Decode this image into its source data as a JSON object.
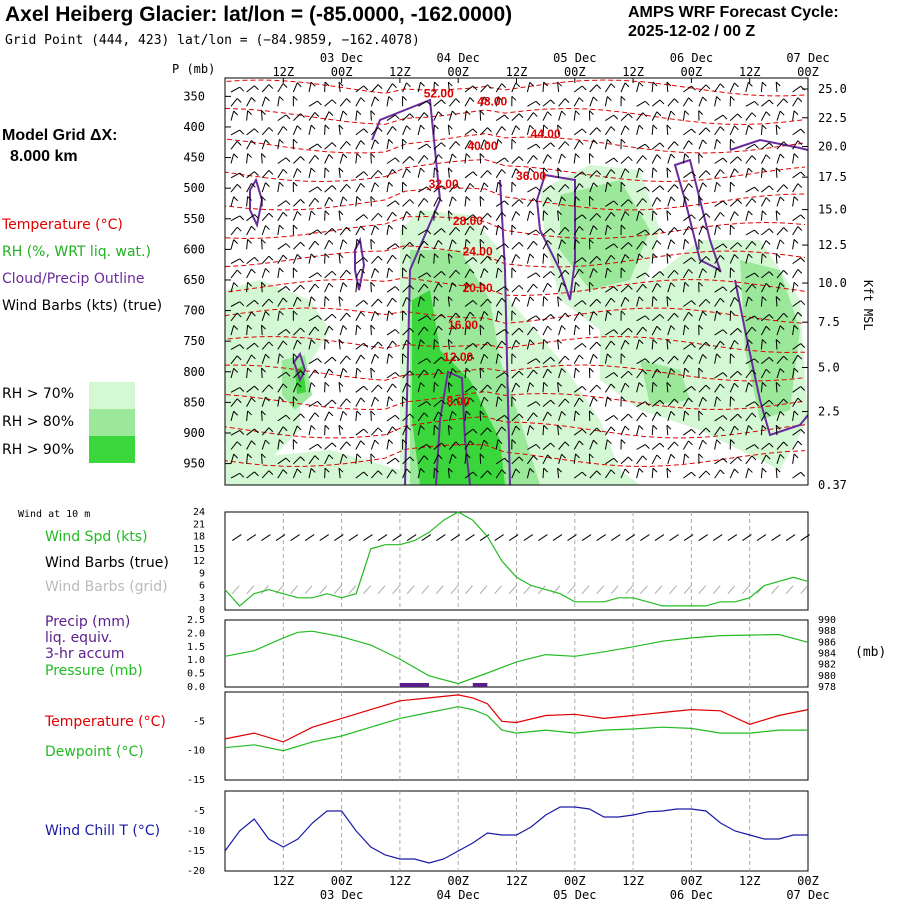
{
  "header": {
    "title": "Axel Heiberg Glacier:  lat/lon = (-85.0000, -162.0000)",
    "subtitle": "Grid Point (444, 423) lat/lon = (−84.9859, −162.4078)",
    "cycle_line1": "AMPS WRF Forecast Cycle:",
    "cycle_line2": "2025-12-02 / 00  Z"
  },
  "sidebar": {
    "model_grid_label": "Model Grid ΔX:",
    "model_grid_value": "8.000 km",
    "legend_temperature": "Temperature (°C)",
    "legend_rh": "RH (%, WRT liq. wat.)",
    "legend_cloud": "Cloud/Precip Outline",
    "legend_wind": "Wind Barbs (kts) (true)",
    "rh_levels": [
      {
        "label": "RH > 70%",
        "color": "#d4f7d4"
      },
      {
        "label": "RH > 80%",
        "color": "#9be89b"
      },
      {
        "label": "RH > 90%",
        "color": "#3bd63b"
      }
    ]
  },
  "colors": {
    "temperature": "#e00000",
    "rh_green": "#21c021",
    "cloud": "#6a2c9c",
    "wind_chill": "#1a1aa8",
    "dewpoint": "#22bb22",
    "pressure": "#22bb22",
    "precip_bar": "#5a1e8c",
    "grey_barbs": "#aaaaaa"
  },
  "time_axis": {
    "hour_labels": [
      "12Z",
      "00Z",
      "12Z",
      "00Z",
      "12Z",
      "00Z",
      "12Z",
      "00Z",
      "12Z",
      "00Z"
    ],
    "hour_values": [
      12,
      24,
      36,
      48,
      60,
      72,
      84,
      96,
      108,
      120
    ],
    "date_labels": [
      "03 Dec",
      "04 Dec",
      "05 Dec",
      "06 Dec",
      "07 Dec"
    ],
    "date_hours": [
      24,
      48,
      72,
      96,
      120
    ],
    "start_hour": 0,
    "end_hour": 120
  },
  "chart_data": [
    {
      "type": "heatmap",
      "name": "cross-section",
      "ylabel_left": "P (mb)",
      "ylabel_right": "Kft MSL",
      "pressure_ticks": [
        350,
        400,
        450,
        500,
        550,
        600,
        650,
        700,
        750,
        800,
        850,
        900,
        950
      ],
      "kft_ticks": [
        "25.0",
        "22.5",
        "20.0",
        "17.5",
        "15.0",
        "12.5",
        "10.0",
        "7.5",
        "5.0",
        "2.5",
        "0.37"
      ],
      "kft_pressure": [
        338,
        385,
        432,
        482,
        535,
        593,
        655,
        719,
        793,
        865,
        985
      ],
      "ylim": [
        320,
        985
      ],
      "isotherms": [
        {
          "label": "52.00",
          "hour": 44,
          "p": 352
        },
        {
          "label": "48.00",
          "hour": 55,
          "p": 365
        },
        {
          "label": "44.00",
          "hour": 66,
          "p": 418
        },
        {
          "label": "40.00",
          "hour": 53,
          "p": 438
        },
        {
          "label": "36.00",
          "hour": 63,
          "p": 487
        },
        {
          "label": "32.00",
          "hour": 45,
          "p": 500
        },
        {
          "label": "28.00",
          "hour": 50,
          "p": 560
        },
        {
          "label": "24.00",
          "hour": 52,
          "p": 610
        },
        {
          "label": "20.00",
          "hour": 52,
          "p": 670
        },
        {
          "label": "16.00",
          "hour": 49,
          "p": 730
        },
        {
          "label": "12.00",
          "hour": 48,
          "p": 782
        },
        {
          "label": "8.00",
          "hour": 48,
          "p": 855
        }
      ]
    },
    {
      "type": "line",
      "name": "wind-panel",
      "panel_title": "Wind at 10 m",
      "labels": [
        "Wind Spd (kts)",
        "Wind Barbs (true)",
        "Wind Barbs (grid)"
      ],
      "yticks": [
        0,
        3,
        6,
        9,
        12,
        15,
        18,
        21,
        24
      ],
      "ylim": [
        0,
        24
      ],
      "series": [
        {
          "name": "Wind Spd (kts)",
          "x": [
            0,
            3,
            6,
            9,
            12,
            15,
            18,
            21,
            24,
            27,
            30,
            33,
            36,
            39,
            42,
            45,
            48,
            51,
            54,
            57,
            60,
            63,
            66,
            69,
            72,
            75,
            78,
            81,
            84,
            87,
            90,
            93,
            96,
            99,
            102,
            105,
            108,
            111,
            114,
            117,
            120
          ],
          "values": [
            5,
            1,
            4,
            5,
            4,
            3,
            3,
            4,
            3,
            4,
            15,
            16,
            16,
            17,
            19,
            22,
            24,
            22,
            18,
            12,
            8,
            6,
            5,
            4,
            2,
            2,
            2,
            3,
            3,
            2,
            1,
            1,
            1,
            1,
            2,
            2,
            3,
            6,
            7,
            8,
            7
          ]
        }
      ]
    },
    {
      "type": "line",
      "name": "precip-pressure-panel",
      "labels": [
        "Precip (mm)",
        "liq. equiv.",
        "3-hr accum",
        "Pressure (mb)"
      ],
      "left_ticks": [
        "0.0",
        "0.5",
        "1.0",
        "1.5",
        "2.0",
        "2.5"
      ],
      "right_ticks": [
        "978",
        "980",
        "982",
        "984",
        "986",
        "988",
        "990"
      ],
      "right_unit": "(mb)",
      "precip_ylim": [
        0,
        2.5
      ],
      "pressure_ylim": [
        978,
        990
      ],
      "precip": [
        {
          "hour": 37.5,
          "value": 0.15
        },
        {
          "hour": 40.5,
          "value": 0.15
        },
        {
          "hour": 52.5,
          "value": 0.15
        }
      ],
      "series": [
        {
          "name": "Pressure (mb)",
          "x": [
            0,
            6,
            12,
            15,
            18,
            24,
            30,
            36,
            42,
            48,
            54,
            60,
            66,
            72,
            78,
            84,
            90,
            96,
            102,
            108,
            114,
            120
          ],
          "values": [
            983.5,
            984.5,
            986.8,
            987.8,
            988,
            987,
            985.5,
            983,
            980,
            978.6,
            980.5,
            982.5,
            983.8,
            983.5,
            984.3,
            985.2,
            986.2,
            986.8,
            987.2,
            987.3,
            987.4,
            986
          ]
        }
      ]
    },
    {
      "type": "line",
      "name": "temperature-panel",
      "labels": [
        "Temperature (°C)",
        "Dewpoint (°C)"
      ],
      "yticks": [
        "-15",
        "-10",
        "-5"
      ],
      "ytick_values": [
        -15,
        -10,
        -5
      ],
      "ylim": [
        -15,
        0
      ],
      "series": [
        {
          "name": "Temperature (°C)",
          "x": [
            0,
            6,
            12,
            18,
            24,
            30,
            36,
            42,
            48,
            51,
            54,
            57,
            60,
            66,
            72,
            78,
            84,
            90,
            96,
            102,
            108,
            114,
            120
          ],
          "values": [
            -8,
            -7,
            -8.5,
            -6,
            -4.5,
            -3,
            -1.5,
            -1,
            -0.5,
            -1,
            -2,
            -5,
            -5.2,
            -4,
            -3.8,
            -4.5,
            -4,
            -3.5,
            -3,
            -3.2,
            -5.5,
            -4,
            -3
          ]
        },
        {
          "name": "Dewpoint (°C)",
          "x": [
            0,
            6,
            12,
            18,
            24,
            30,
            36,
            42,
            48,
            51,
            54,
            57,
            60,
            66,
            72,
            78,
            84,
            90,
            96,
            102,
            108,
            114,
            120
          ],
          "values": [
            -9.5,
            -9,
            -10,
            -8.5,
            -7.5,
            -6,
            -4.5,
            -3.5,
            -2.5,
            -3,
            -4,
            -6.5,
            -7,
            -6.5,
            -7,
            -6.5,
            -6.3,
            -6,
            -6.2,
            -7,
            -7,
            -6.5,
            -6.5
          ]
        }
      ]
    },
    {
      "type": "line",
      "name": "wind-chill-panel",
      "labels": [
        "Wind Chill T (°C)"
      ],
      "yticks": [
        "-20",
        "-15",
        "-10",
        "-5"
      ],
      "ytick_values": [
        -20,
        -15,
        -10,
        -5
      ],
      "ylim": [
        -20,
        0
      ],
      "series": [
        {
          "name": "Wind Chill T (°C)",
          "x": [
            0,
            3,
            6,
            9,
            12,
            15,
            18,
            21,
            24,
            27,
            30,
            33,
            36,
            39,
            42,
            45,
            48,
            51,
            54,
            57,
            60,
            63,
            66,
            69,
            72,
            75,
            78,
            81,
            84,
            87,
            90,
            93,
            96,
            99,
            102,
            105,
            108,
            111,
            114,
            117,
            120
          ],
          "values": [
            -15,
            -10,
            -7,
            -12,
            -14,
            -12,
            -8,
            -5,
            -5,
            -10,
            -14,
            -16,
            -17,
            -17,
            -18,
            -17,
            -15,
            -13,
            -10.5,
            -11,
            -11,
            -9,
            -6,
            -4,
            -4,
            -4.5,
            -6.5,
            -6.5,
            -6,
            -5.2,
            -5,
            -4.5,
            -4.5,
            -5,
            -8,
            -10,
            -11,
            -12,
            -12,
            -11,
            -11
          ]
        }
      ]
    }
  ]
}
